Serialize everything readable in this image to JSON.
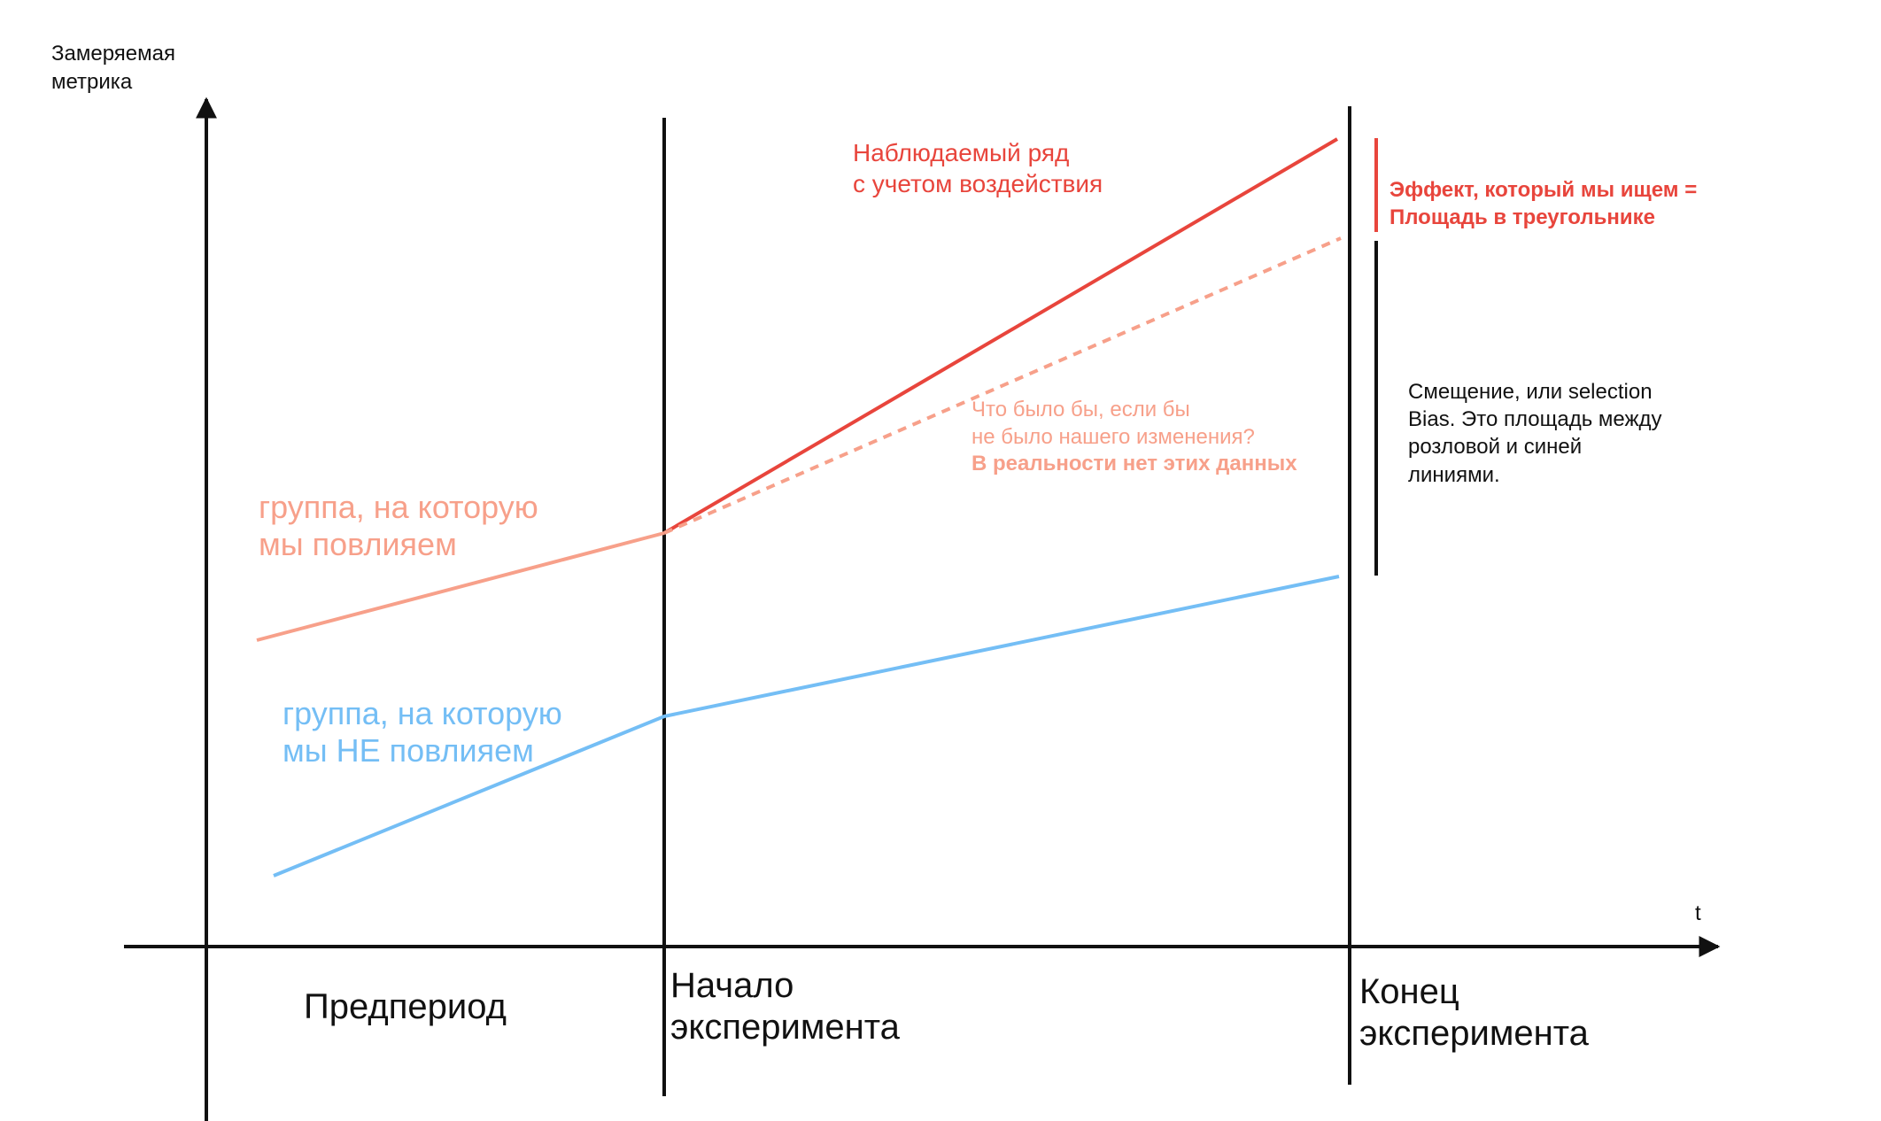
{
  "colors": {
    "axis": "#111111",
    "treated": "#f7a08a",
    "observed": "#e8453c",
    "counterfactual": "#f7a08a",
    "control": "#74bef5",
    "effect": "#e8453c",
    "bias": "#111111"
  },
  "axes": {
    "y_label": [
      "Замеряемая",
      "метрика"
    ],
    "x_label": "t"
  },
  "phases": {
    "pre": "Предпериод",
    "start": [
      "Начало",
      "эксперимента"
    ],
    "end": [
      "Конец",
      "эксперимента"
    ]
  },
  "series": {
    "treated": {
      "label": [
        "группа, на которую",
        "мы повлияем"
      ],
      "line_style": "solid"
    },
    "observed": {
      "label": [
        "Наблюдаемый ряд",
        "с учетом воздействия"
      ],
      "line_style": "solid"
    },
    "counterfactual": {
      "label": [
        "Что было бы, если бы",
        "не было нашего изменения?"
      ],
      "note": "В реальности нет этих данных",
      "line_style": "dashed"
    },
    "control": {
      "label": [
        "группа, на которую",
        "мы НЕ повлияем"
      ],
      "line_style": "solid"
    }
  },
  "annotations": {
    "effect": [
      "Эффект, который мы ищем =",
      "Площадь в треугольнике"
    ],
    "bias": [
      "Смещение, или selection",
      "Bias. Это площадь между",
      "розловой и синей",
      "линиями."
    ]
  }
}
